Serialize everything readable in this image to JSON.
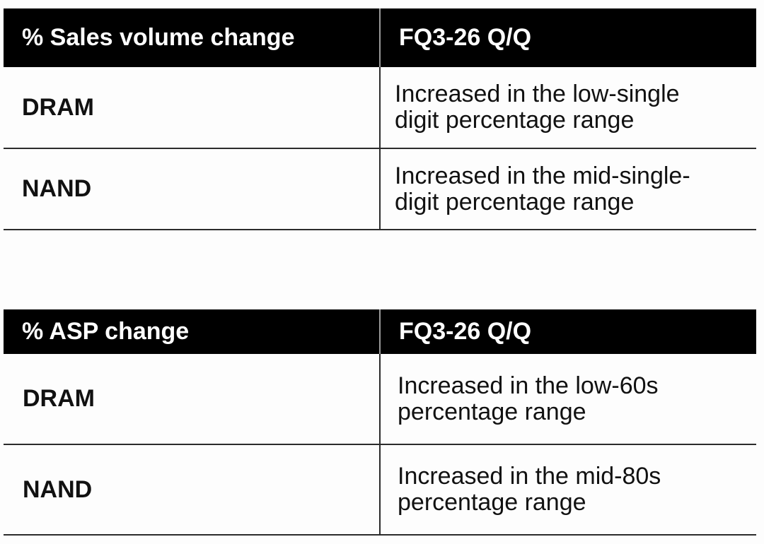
{
  "volume_table": {
    "header": {
      "col1": "% Sales volume change",
      "col2": "FQ3-26 Q/Q"
    },
    "rows": [
      {
        "label": "DRAM",
        "value_line1": "Increased in the low-single",
        "value_line2": "digit percentage range"
      },
      {
        "label": "NAND",
        "value_line1": "Increased in the mid-single-",
        "value_line2": "digit percentage range"
      }
    ]
  },
  "asp_table": {
    "header": {
      "col1": "% ASP change",
      "col2": "FQ3-26 Q/Q"
    },
    "rows": [
      {
        "label": "DRAM",
        "value_line1": "Increased in the low-60s",
        "value_line2": "percentage range"
      },
      {
        "label": "NAND",
        "value_line1": "Increased in the mid-80s",
        "value_line2": "percentage range"
      }
    ]
  }
}
